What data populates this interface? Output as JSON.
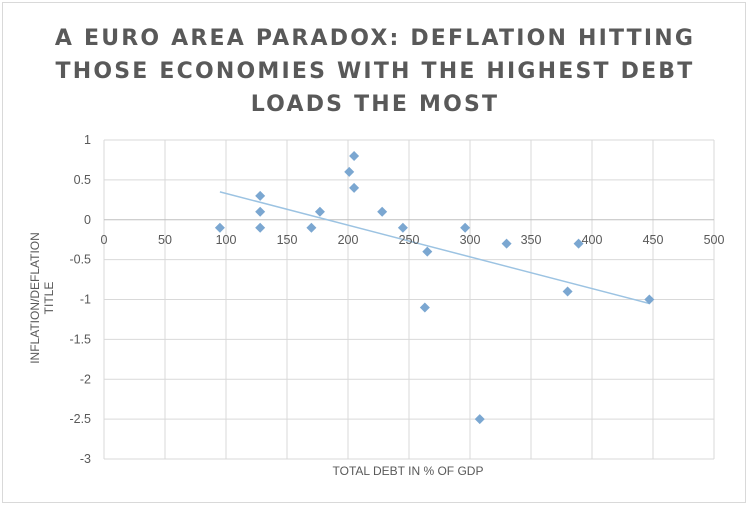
{
  "chart_data": {
    "type": "scatter",
    "title_lines": [
      "A EURO AREA PARADOX: DEFLATION HITTING",
      "THOSE ECONOMIES WITH THE HIGHEST DEBT",
      "LOADS THE MOST"
    ],
    "xlabel": "TOTAL DEBT IN % OF GDP",
    "ylabel_lines": [
      "INFLATION/DEFLATION",
      "TITLE"
    ],
    "xlim": [
      0,
      500
    ],
    "ylim": [
      -3,
      1
    ],
    "x_ticks": [
      "0",
      "50",
      "100",
      "150",
      "200",
      "250",
      "300",
      "350",
      "400",
      "450",
      "500"
    ],
    "y_ticks": [
      "1",
      "0.5",
      "0",
      "-0.5",
      "-1",
      "-1.5",
      "-2",
      "-2.5",
      "-3"
    ],
    "grid": true,
    "marker_color": "#7ba7d1",
    "trendline_color": "#9cc3e2",
    "points": [
      {
        "x": 95,
        "y": -0.1
      },
      {
        "x": 128,
        "y": 0.3
      },
      {
        "x": 128,
        "y": 0.1
      },
      {
        "x": 128,
        "y": -0.1
      },
      {
        "x": 170,
        "y": -0.1
      },
      {
        "x": 177,
        "y": 0.1
      },
      {
        "x": 201,
        "y": 0.6
      },
      {
        "x": 205,
        "y": 0.8
      },
      {
        "x": 205,
        "y": 0.4
      },
      {
        "x": 228,
        "y": 0.1
      },
      {
        "x": 245,
        "y": -0.1
      },
      {
        "x": 263,
        "y": -1.1
      },
      {
        "x": 265,
        "y": -0.4
      },
      {
        "x": 296,
        "y": -0.1
      },
      {
        "x": 308,
        "y": -2.5
      },
      {
        "x": 330,
        "y": -0.3
      },
      {
        "x": 380,
        "y": -0.9
      },
      {
        "x": 389,
        "y": -0.3
      },
      {
        "x": 447,
        "y": -1.0
      }
    ],
    "trendline": {
      "x": [
        95,
        447
      ],
      "y": [
        0.35,
        -1.05
      ]
    }
  }
}
